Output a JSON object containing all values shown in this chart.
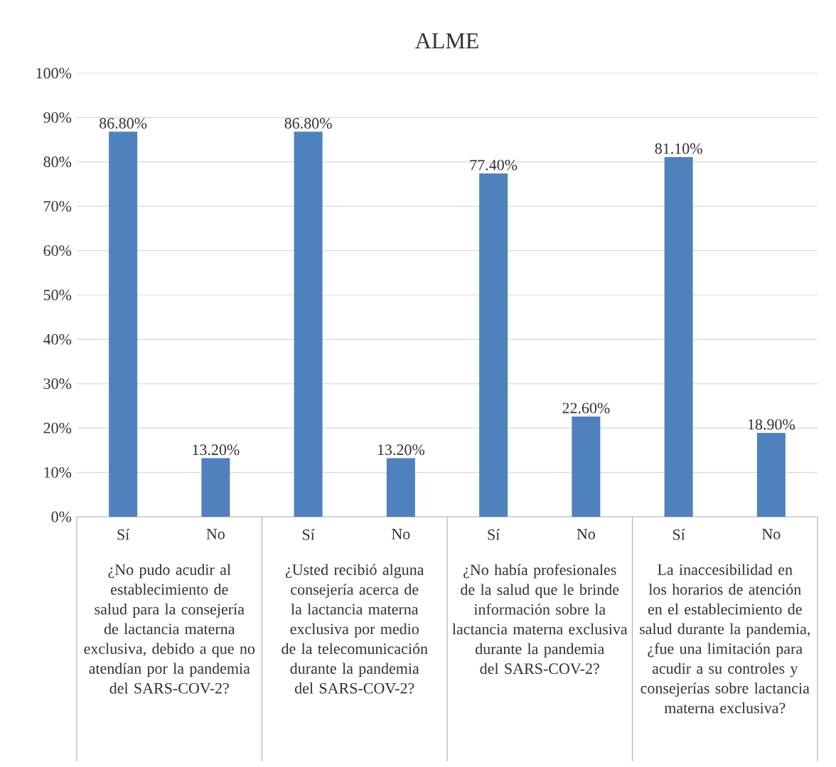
{
  "chart_data": {
    "type": "bar",
    "title": "ALME",
    "categories": [
      "Sí",
      "No",
      "Sí",
      "No",
      "Sí",
      "No",
      "Sí",
      "No"
    ],
    "values": [
      86.8,
      13.2,
      86.8,
      13.2,
      77.4,
      22.6,
      81.1,
      18.9
    ],
    "value_labels": [
      "86.80%",
      "13.20%",
      "86.80%",
      "13.20%",
      "77.40%",
      "22.60%",
      "81.10%",
      "18.90%"
    ],
    "color": "#4f81bd",
    "ylim": [
      0,
      100
    ],
    "yticks": [
      {
        "value": 0,
        "label": "0%"
      },
      {
        "value": 10,
        "label": "10%"
      },
      {
        "value": 20,
        "label": "20%"
      },
      {
        "value": 30,
        "label": "30%"
      },
      {
        "value": 40,
        "label": "40%"
      },
      {
        "value": 50,
        "label": "50%"
      },
      {
        "value": 60,
        "label": "60%"
      },
      {
        "value": 70,
        "label": "70%"
      },
      {
        "value": 80,
        "label": "80%"
      },
      {
        "value": 90,
        "label": "90%"
      },
      {
        "value": 100,
        "label": "100%"
      }
    ],
    "grid": "y",
    "annotations": [
      "¿No pudo acudir al establecimiento de salud para la consejería de lactancia materna exclusiva, debido a que no atendían por la pandemia del SARS-COV-2?",
      "¿Usted recibió alguna consejería acerca de la lactancia materna exclusiva por medio de la telecomunicación durante la pandemia del SARS-COV-2?",
      "¿No había profesionales de la salud que le brinde información sobre la lactancia materna exclusiva durante la pandemia del SARS-COV-2?",
      "La inaccesibilidad en los horarios de atención en el establecimiento de salud durante la pandemia, ¿fue una limitación para acudir a su controles y consejerías sobre lactancia materna exclusiva?"
    ]
  }
}
